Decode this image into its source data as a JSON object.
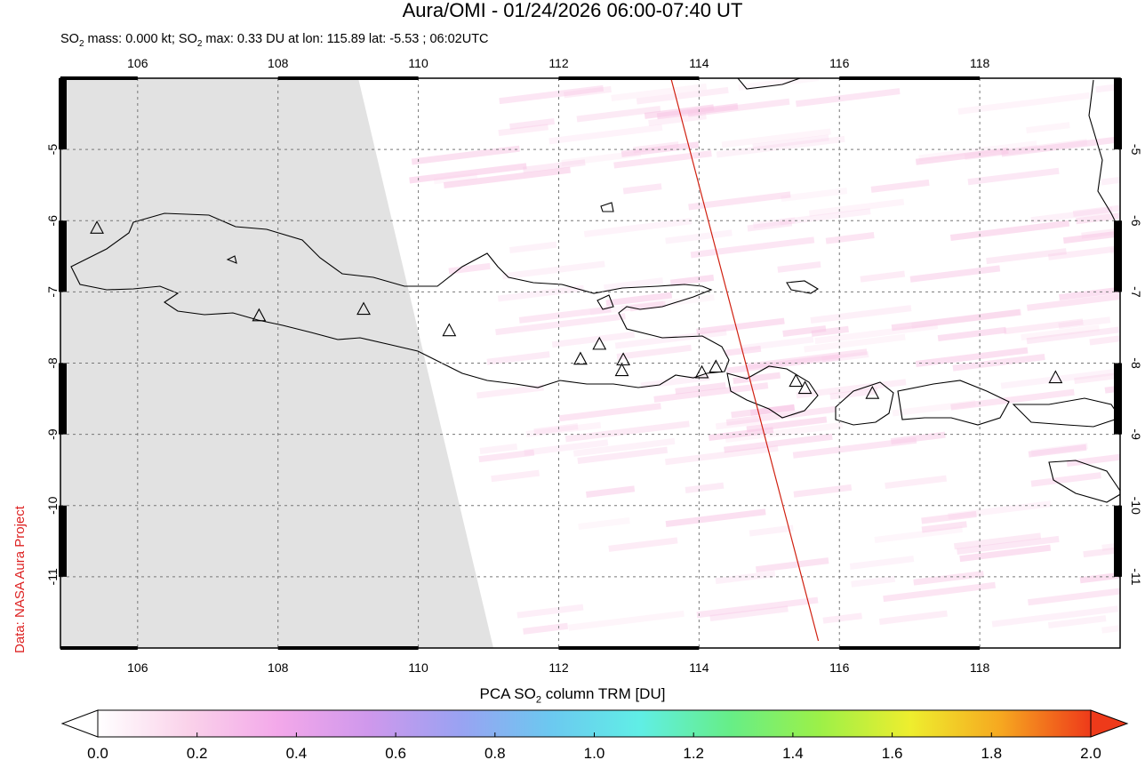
{
  "title": "Aura/OMI - 01/24/2026 06:00-07:40 UT",
  "subtitle": {
    "p1": "SO",
    "p1_sub": "2",
    "p2": " mass: 0.000 kt; SO",
    "p2_sub": "2",
    "p3": " max: 0.33 DU at lon: 115.89 lat: -5.53 ; 06:02UTC"
  },
  "credit": "Data: NASA Aura Project",
  "map": {
    "lon_range": [
      104.9,
      120.0
    ],
    "lat_range": [
      -12.0,
      -4.0
    ],
    "lon_ticks": [
      106,
      108,
      110,
      112,
      114,
      116,
      118
    ],
    "lon_tick_labels": [
      "106",
      "108",
      "110",
      "112",
      "114",
      "116",
      "118"
    ],
    "lat_ticks": [
      -5,
      -6,
      -7,
      -8,
      -9,
      -10,
      -11
    ],
    "lat_tick_labels": [
      "-5",
      "-6",
      "-7",
      "-8",
      "-9",
      "-10",
      "-11"
    ],
    "no_data_region": "grey swath left of ~110°E",
    "orbit_track_color": "#d02010",
    "orbit_track": [
      [
        113.6,
        -4.0
      ],
      [
        115.7,
        -11.9
      ]
    ],
    "volcanoes": [
      {
        "lon": 105.42,
        "lat": -6.1
      },
      {
        "lon": 107.73,
        "lat": -7.33
      },
      {
        "lon": 109.22,
        "lat": -7.24
      },
      {
        "lon": 110.44,
        "lat": -7.54
      },
      {
        "lon": 112.31,
        "lat": -7.94
      },
      {
        "lon": 112.58,
        "lat": -7.73
      },
      {
        "lon": 112.92,
        "lat": -7.95
      },
      {
        "lon": 112.9,
        "lat": -8.1
      },
      {
        "lon": 114.04,
        "lat": -8.13
      },
      {
        "lon": 114.24,
        "lat": -8.05
      },
      {
        "lon": 115.38,
        "lat": -8.25
      },
      {
        "lon": 115.51,
        "lat": -8.35
      },
      {
        "lon": 116.47,
        "lat": -8.42
      },
      {
        "lon": 119.08,
        "lat": -8.2
      }
    ]
  },
  "colorbar": {
    "title": "PCA SO",
    "title_sub": "2",
    "title_rest": " column TRM [DU]",
    "min": 0.0,
    "max": 2.0,
    "tick_labels": [
      "0.0",
      "0.2",
      "0.4",
      "0.6",
      "0.8",
      "1.0",
      "1.2",
      "1.4",
      "1.6",
      "1.8",
      "2.0"
    ],
    "colors": [
      "#ffffff",
      "#fad2ea",
      "#f3a8ea",
      "#cf98ec",
      "#9aa2f2",
      "#6cc8f0",
      "#60eee6",
      "#66ee88",
      "#9cf048",
      "#eeee2e",
      "#f6a820",
      "#ee3a1a"
    ]
  }
}
